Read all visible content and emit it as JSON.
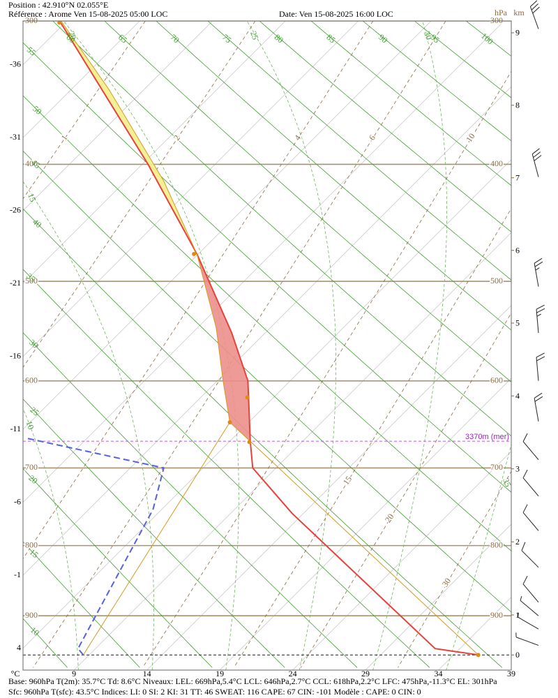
{
  "header": {
    "position": "Position : 42.910°N 02.055°E",
    "reference": "Référence : Arome Ven 15-08-2025 05:00 LOC",
    "date": "Date: Ven 15-08-2025 16:00 LOC"
  },
  "chart_data": {
    "type": "skew-t",
    "y_label": "hPa",
    "y2_label": "km",
    "x_label": "°C",
    "ylim": [
      300,
      984
    ],
    "yticks": [
      300,
      400,
      500,
      600,
      700,
      800,
      900
    ],
    "y2ticks": [
      9,
      8,
      7,
      6,
      5,
      4,
      3,
      2,
      1,
      0
    ],
    "xlim": [
      5.5,
      39
    ],
    "xticks": [
      9,
      14,
      19,
      24,
      29,
      34,
      39
    ],
    "skew_ticks": [
      -36,
      -31,
      -26,
      -21,
      -16,
      -11,
      -6,
      -1,
      4
    ],
    "dry_adiabats": [
      10,
      15,
      20,
      25,
      30,
      35,
      40,
      45,
      50,
      55,
      60,
      65,
      70,
      75,
      80,
      85,
      90,
      95,
      100
    ],
    "moist_adiabats": [
      10,
      15,
      20,
      25,
      30,
      35
    ],
    "mixing_ratios": [
      1,
      2,
      4,
      6,
      10,
      15,
      20,
      30
    ],
    "surface_pressure": 960,
    "freezing_level": {
      "label": "3370m (mer)",
      "pressure": 668
    },
    "series": [
      {
        "color": "#e8403a",
        "style": "solid",
        "pressure": [
          960,
          950,
          757,
          700,
          668,
          600,
          550,
          475,
          400,
          300
        ],
        "values": [
          35.7,
          32.3,
          13.2,
          7.4,
          5.4,
          1.1,
          -3.3,
          -11.1,
          -20.6,
          -36.5
        ]
      },
      {
        "color": "#5560e0",
        "style": "dashed",
        "pressure": [
          960,
          950,
          752,
          700,
          664
        ],
        "values": [
          8.6,
          7.8,
          3.4,
          1.3,
          -10.3
        ]
      },
      {
        "color": "#d49a20",
        "style": "thin",
        "pressure": [
          960,
          668,
          646,
          600,
          545,
          475,
          413,
          345,
          300
        ],
        "values": [
          35.7,
          5.4,
          2.7,
          -0.6,
          -4.7,
          -11.1,
          -18.4,
          -28.4,
          -36.4
        ]
      }
    ],
    "levels": {
      "color": "#e08a10",
      "pressure": [
        960,
        669,
        646,
        618,
        475,
        301
      ],
      "values": [
        35.7,
        5.4,
        2.7,
        2.2,
        -11.3,
        -36.4
      ]
    },
    "wind": {
      "pressure": [
        305,
        410,
        505,
        550,
        600,
        645,
        690,
        735,
        780,
        830,
        880,
        900,
        920,
        945
      ],
      "direction": [
        340,
        345,
        350,
        355,
        355,
        350,
        320,
        320,
        320,
        315,
        320,
        310,
        300,
        290
      ],
      "speed": [
        30,
        30,
        25,
        25,
        20,
        20,
        10,
        10,
        10,
        10,
        10,
        5,
        5,
        5
      ]
    },
    "footer": [
      "Base: 960hPa  T(2m): 35.7°C  Td: 8.6°C    Niveaux: LEL: 669hPa,5.4°C    LCL: 646hPa,2.7°C    CCL: 618hPa,2.2°C    LFC: 475hPa,-11.3°C    EL: 301hPa",
      "Sfc: 960hPa  T(sfc): 43.5°C       Indices:   LI: 0    SI: 2    KI: 31    TT: 46    SWEAT: 116      CAPE: 67   CIN: -101           Modèle : CAPE: 0 CIN: 0"
    ]
  }
}
